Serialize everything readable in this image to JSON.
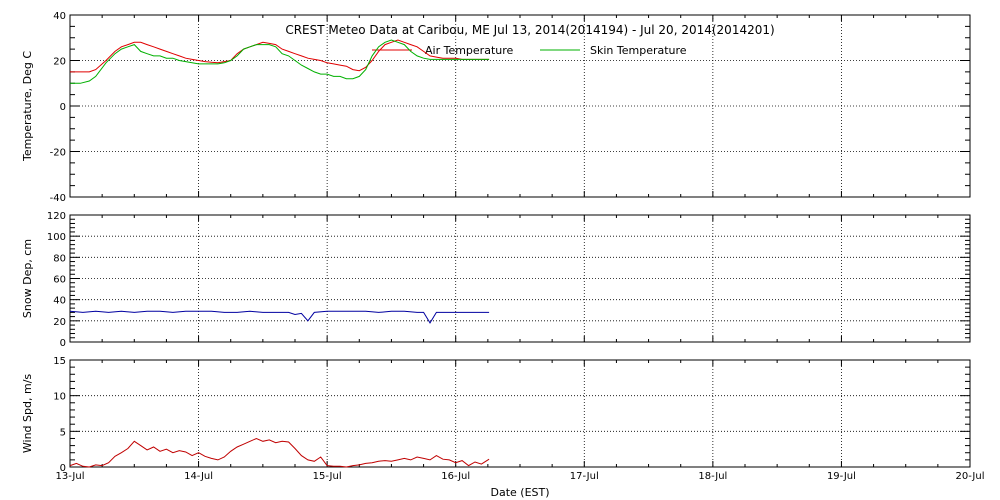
{
  "chart_data": {
    "type": "line",
    "title": "CREST Meteo Data at Caribou, ME   Jul 13, 2014(2014194) - Jul 20, 2014(2014201)",
    "xlabel": "Date (EST)",
    "x_ticks": [
      "13-Jul",
      "14-Jul",
      "15-Jul",
      "16-Jul",
      "17-Jul",
      "18-Jul",
      "19-Jul",
      "20-Jul"
    ],
    "x_range_days": [
      0,
      7
    ],
    "grid": true,
    "legend_position": "top",
    "panels": [
      {
        "id": "temperature",
        "ylabel": "Temperature, Deg C",
        "ylim": [
          -40,
          40
        ],
        "y_ticks": [
          -40,
          -20,
          0,
          20,
          40
        ],
        "series": [
          {
            "name": "Air Temperature",
            "color": "#e00000",
            "x": [
              0,
              0.08,
              0.15,
              0.2,
              0.28,
              0.35,
              0.4,
              0.45,
              0.5,
              0.55,
              0.6,
              0.65,
              0.7,
              0.75,
              0.8,
              0.85,
              0.9,
              0.95,
              1.0,
              1.05,
              1.1,
              1.15,
              1.2,
              1.25,
              1.3,
              1.35,
              1.4,
              1.45,
              1.5,
              1.55,
              1.6,
              1.65,
              1.7,
              1.75,
              1.8,
              1.85,
              1.9,
              1.95,
              2.0,
              2.05,
              2.1,
              2.15,
              2.2,
              2.25,
              2.3,
              2.35,
              2.4,
              2.45,
              2.5,
              2.55,
              2.6,
              2.65,
              2.7,
              2.75,
              2.8,
              2.85,
              2.9,
              2.95,
              3.0,
              3.05,
              3.1,
              3.15,
              3.2,
              3.26
            ],
            "values": [
              15,
              15,
              15,
              16,
              20,
              24,
              26,
              27,
              28,
              28,
              27,
              26,
              25,
              24,
              23,
              22,
              21,
              20.5,
              20,
              19.5,
              19.2,
              19,
              19.5,
              20,
              23,
              25,
              26,
              27,
              28,
              27.5,
              27,
              25,
              24,
              23,
              22,
              21,
              20.5,
              20,
              19,
              18.5,
              18,
              17.5,
              16,
              15.5,
              17,
              20,
              24,
              27,
              28,
              29,
              28,
              27,
              26,
              24,
              22,
              21.5,
              21,
              21,
              21,
              20.5,
              20.5,
              20.5,
              20.5,
              20.5
            ]
          },
          {
            "name": "Skin Temperature",
            "color": "#00b000",
            "x": [
              0,
              0.08,
              0.15,
              0.2,
              0.28,
              0.35,
              0.4,
              0.45,
              0.5,
              0.55,
              0.6,
              0.65,
              0.7,
              0.75,
              0.8,
              0.85,
              0.9,
              0.95,
              1.0,
              1.05,
              1.1,
              1.15,
              1.2,
              1.25,
              1.3,
              1.35,
              1.4,
              1.45,
              1.5,
              1.55,
              1.6,
              1.65,
              1.7,
              1.75,
              1.8,
              1.85,
              1.9,
              1.95,
              2.0,
              2.05,
              2.1,
              2.15,
              2.2,
              2.25,
              2.3,
              2.35,
              2.4,
              2.45,
              2.5,
              2.55,
              2.6,
              2.65,
              2.7,
              2.75,
              2.8,
              2.85,
              2.9,
              2.95,
              3.0,
              3.05,
              3.1,
              3.15,
              3.2,
              3.26
            ],
            "values": [
              10,
              10,
              11,
              13,
              19,
              23,
              25,
              26,
              27,
              24,
              23,
              22,
              22,
              21,
              21,
              20,
              19.5,
              19,
              18.5,
              18.5,
              18.5,
              18.5,
              19,
              20,
              22,
              25,
              26,
              27,
              27,
              27,
              26,
              23,
              22,
              20,
              18,
              16.5,
              15,
              14,
              14,
              13,
              13,
              12,
              12,
              13,
              16,
              22,
              26,
              28,
              29,
              28,
              27,
              24,
              22,
              21,
              20.5,
              20.5,
              20.5,
              20.5,
              20.5,
              20.5,
              20.5,
              20.5,
              20.5,
              20.5
            ]
          }
        ]
      },
      {
        "id": "snow",
        "ylabel": "Snow Dep, cm",
        "ylim": [
          0,
          120
        ],
        "y_ticks": [
          0,
          20,
          40,
          60,
          80,
          100,
          120
        ],
        "series": [
          {
            "color": "#0000a0",
            "x": [
              0,
              0.1,
              0.2,
              0.3,
              0.4,
              0.5,
              0.6,
              0.7,
              0.8,
              0.9,
              1.0,
              1.1,
              1.2,
              1.3,
              1.4,
              1.5,
              1.6,
              1.7,
              1.75,
              1.8,
              1.85,
              1.9,
              2.0,
              2.1,
              2.2,
              2.3,
              2.4,
              2.5,
              2.6,
              2.7,
              2.75,
              2.8,
              2.85,
              2.9,
              3.0,
              3.1,
              3.2,
              3.26
            ],
            "values": [
              29,
              28,
              29,
              28,
              29,
              28,
              29,
              29,
              28,
              29,
              29,
              29,
              28,
              28,
              29,
              28,
              28,
              28,
              26,
              27,
              20,
              28,
              29,
              29,
              29,
              29,
              28,
              29,
              29,
              28,
              28,
              18,
              28,
              28,
              28,
              28,
              28,
              28
            ]
          }
        ]
      },
      {
        "id": "wind",
        "ylabel": "Wind Spd, m/s",
        "ylim": [
          0,
          15
        ],
        "y_ticks": [
          0,
          5,
          10,
          15
        ],
        "series": [
          {
            "color": "#c00000",
            "x": [
              0,
              0.05,
              0.1,
              0.15,
              0.2,
              0.25,
              0.3,
              0.35,
              0.4,
              0.45,
              0.5,
              0.55,
              0.6,
              0.65,
              0.7,
              0.75,
              0.8,
              0.85,
              0.9,
              0.95,
              1.0,
              1.05,
              1.1,
              1.15,
              1.2,
              1.25,
              1.3,
              1.35,
              1.4,
              1.45,
              1.5,
              1.55,
              1.6,
              1.65,
              1.7,
              1.75,
              1.8,
              1.85,
              1.9,
              1.95,
              2.0,
              2.05,
              2.1,
              2.15,
              2.2,
              2.25,
              2.3,
              2.35,
              2.4,
              2.45,
              2.5,
              2.55,
              2.6,
              2.65,
              2.7,
              2.75,
              2.8,
              2.85,
              2.9,
              2.95,
              3.0,
              3.05,
              3.1,
              3.15,
              3.2,
              3.26
            ],
            "values": [
              0.2,
              0.5,
              0.1,
              0,
              0.3,
              0.2,
              0.6,
              1.5,
              2.0,
              2.6,
              3.6,
              3.0,
              2.4,
              2.8,
              2.2,
              2.5,
              2.0,
              2.3,
              2.1,
              1.6,
              2.0,
              1.5,
              1.2,
              1.0,
              1.4,
              2.2,
              2.8,
              3.2,
              3.6,
              4.0,
              3.6,
              3.8,
              3.4,
              3.6,
              3.5,
              2.6,
              1.6,
              1.0,
              0.8,
              1.4,
              0.2,
              0.1,
              0.1,
              0.0,
              0.2,
              0.3,
              0.5,
              0.6,
              0.8,
              0.9,
              0.8,
              1.0,
              1.2,
              1.0,
              1.4,
              1.2,
              1.0,
              1.6,
              1.1,
              1.0,
              0.6,
              0.9,
              0.2,
              0.7,
              0.4,
              1.1
            ]
          }
        ]
      }
    ]
  }
}
